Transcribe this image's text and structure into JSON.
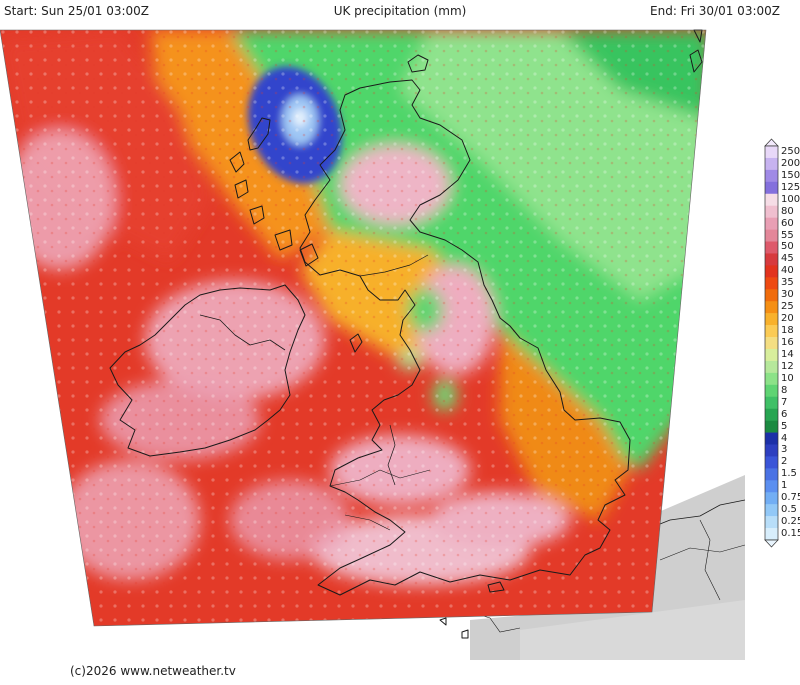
{
  "header": {
    "start": "Start: Sun 25/01 03:00Z",
    "title": "UK precipitation (mm)",
    "end": "End: Fri 30/01 03:00Z"
  },
  "footer": {
    "copyright": "(c)2026 www.netweather.tv"
  },
  "legend": {
    "values": [
      "250",
      "200",
      "150",
      "125",
      "100",
      "80",
      "60",
      "55",
      "50",
      "45",
      "40",
      "35",
      "30",
      "25",
      "20",
      "18",
      "16",
      "14",
      "12",
      "10",
      "8",
      "7",
      "6",
      "5",
      "4",
      "3",
      "2",
      "1.5",
      "1",
      "0.75",
      "0.5",
      "0.25",
      "0.15"
    ],
    "colors": [
      "#e8d8f8",
      "#c7b3f0",
      "#a08ae6",
      "#8470dd",
      "#f6dde6",
      "#f0bfcf",
      "#e99fb4",
      "#e38799",
      "#de5a6b",
      "#d73a3e",
      "#e2331e",
      "#ee4a12",
      "#f06c0c",
      "#f58f14",
      "#f8b12c",
      "#fbcb55",
      "#f4de82",
      "#d8ee9c",
      "#b6e89b",
      "#8ce288",
      "#5fd473",
      "#3fc066",
      "#27a551",
      "#1b8a41",
      "#1c30a8",
      "#2d3fc0",
      "#3a55d8",
      "#4a72e4",
      "#5b8ff0",
      "#72aef4",
      "#92c8f7",
      "#b8def9",
      "#d8eefc"
    ]
  },
  "map_colors": {
    "sea_green": "#4fd66b",
    "sea_light": "#90e690",
    "heavy_red": "#e33a28",
    "orange": "#f27f16",
    "pink": "#eeadc0",
    "blue_max": "#3344cc",
    "coast": "#1a1a1a",
    "continent_grey": "#c8c8c8"
  }
}
